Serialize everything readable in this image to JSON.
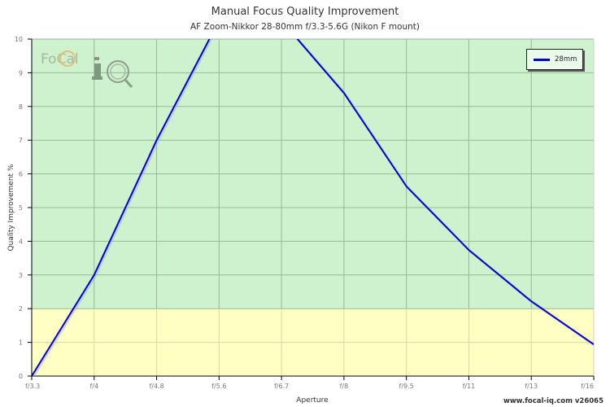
{
  "header": {
    "title": "Manual Focus Quality Improvement",
    "subtitle": "AF Zoom-Nikkor 28-80mm f/3.3-5.6G (Nikon F mount)"
  },
  "footer": {
    "credit": "www.focal-iq.com  v26065"
  },
  "logo": {
    "text_top": "FoCal",
    "text_main": "iQ"
  },
  "legend": {
    "items": [
      {
        "label": "28mm",
        "color": "#0000dd"
      }
    ]
  },
  "colors": {
    "green_zone": "#cdf2cd",
    "yellow_zone": "#ffffc4",
    "line": "#0000dd"
  },
  "chart_data": {
    "type": "line",
    "title": "Manual Focus Quality Improvement",
    "subtitle": "AF Zoom-Nikkor 28-80mm f/3.3-5.6G (Nikon F mount)",
    "xlabel": "Aperture",
    "ylabel": "Quality Improvement %",
    "categories": [
      "f/3.3",
      "f/4",
      "f/4.8",
      "f/5.6",
      "f/6.7",
      "f/8",
      "f/9.5",
      "f/11",
      "f/13",
      "f/16"
    ],
    "series": [
      {
        "name": "28mm",
        "color": "#0000dd",
        "values": [
          0.0,
          3.0,
          7.0,
          10.55,
          10.55,
          8.4,
          5.63,
          3.74,
          2.22,
          0.94
        ]
      }
    ],
    "ylim": [
      0,
      10
    ],
    "yticks": [
      0,
      1,
      2,
      3,
      4,
      5,
      6,
      7,
      8,
      9,
      10
    ],
    "bands": [
      {
        "from": 0,
        "to": 2,
        "color": "#ffffc4"
      },
      {
        "from": 2,
        "to": 10,
        "color": "#cdf2cd"
      }
    ],
    "grid": true,
    "legend_position": "top-right"
  }
}
